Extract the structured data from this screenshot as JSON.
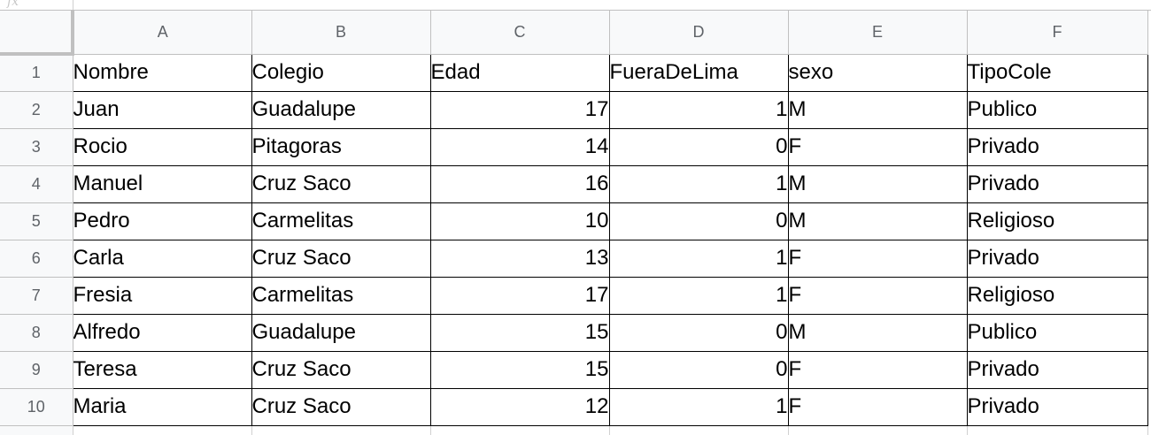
{
  "columns": [
    "A",
    "B",
    "C",
    "D",
    "E",
    "F"
  ],
  "rows": [
    {
      "n": "1",
      "cells": [
        "Nombre",
        "Colegio",
        "Edad",
        "FueraDeLima",
        "sexo",
        "TipoCole"
      ]
    },
    {
      "n": "2",
      "cells": [
        "Juan",
        "Guadalupe",
        "17",
        "1",
        "M",
        "Publico"
      ]
    },
    {
      "n": "3",
      "cells": [
        "Rocio",
        "Pitagoras",
        "14",
        "0",
        "F",
        "Privado"
      ]
    },
    {
      "n": "4",
      "cells": [
        "Manuel",
        "Cruz Saco",
        "16",
        "1",
        "M",
        "Privado"
      ]
    },
    {
      "n": "5",
      "cells": [
        "Pedro",
        "Carmelitas",
        "10",
        "0",
        "M",
        "Religioso"
      ]
    },
    {
      "n": "6",
      "cells": [
        "Carla",
        "Cruz Saco",
        "13",
        "1",
        "F",
        "Privado"
      ]
    },
    {
      "n": "7",
      "cells": [
        "Fresia",
        "Carmelitas",
        "17",
        "1",
        "F",
        "Religioso"
      ]
    },
    {
      "n": "8",
      "cells": [
        "Alfredo",
        "Guadalupe",
        "15",
        "0",
        "M",
        "Publico"
      ]
    },
    {
      "n": "9",
      "cells": [
        "Teresa",
        "Cruz Saco",
        "15",
        "0",
        "F",
        "Privado"
      ]
    },
    {
      "n": "10",
      "cells": [
        "Maria",
        "Cruz Saco",
        "12",
        "1",
        "F",
        "Privado"
      ]
    }
  ]
}
